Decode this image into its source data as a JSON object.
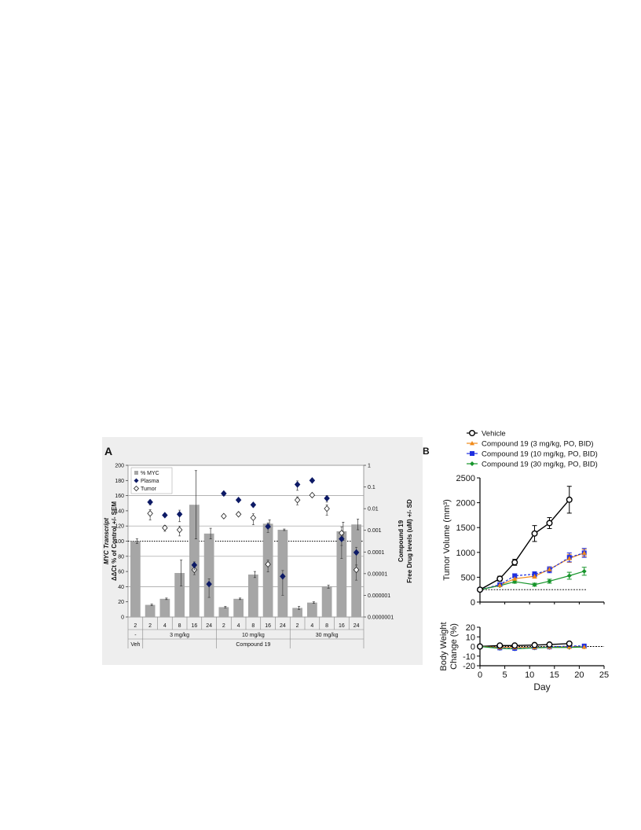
{
  "panel_a_letter": "A",
  "panel_b_letter": "B",
  "chart_data": [
    {
      "type": "bar",
      "title": "",
      "ylabel_lines": [
        "MYC Transcript",
        "ΔΔCt % of Control +/- SEM"
      ],
      "y2label_lines": [
        "Compound 19",
        "Free Drug levels (uM) +/- SD"
      ],
      "ylim": [
        0,
        200
      ],
      "y_ticks": [
        0,
        20,
        40,
        60,
        80,
        100,
        120,
        140,
        160,
        180,
        200
      ],
      "y2_scale": "log",
      "y2lim": [
        1e-07,
        1
      ],
      "y2_ticks": [
        "0.0000001",
        "0.000001",
        "0.00001",
        "0.0001",
        "0.001",
        "0.01",
        "0.1",
        "1"
      ],
      "categories": [
        "2",
        "2",
        "4",
        "8",
        "16",
        "24",
        "2",
        "4",
        "8",
        "16",
        "24",
        "2",
        "4",
        "8",
        "16",
        "24"
      ],
      "dose_groups": [
        "-",
        "3 mg/kg",
        "10 mg/kg",
        "30 mg/kg"
      ],
      "treatment_groups": [
        "Veh",
        "Compound 19"
      ],
      "reference_line_y": 100,
      "legend": {
        "position": "top-left",
        "entries": [
          "% MYC",
          "Plasma",
          "Tumor"
        ]
      },
      "series": [
        {
          "name": "% MYC",
          "kind": "bar",
          "values": [
            100,
            16,
            24,
            58,
            148,
            110,
            13,
            24,
            56,
            123,
            115,
            12,
            19,
            40,
            113,
            122
          ],
          "errors": [
            3,
            1,
            1,
            17,
            45,
            7,
            1,
            1,
            4,
            5,
            1,
            2,
            1,
            2,
            12,
            7
          ]
        },
        {
          "name": "Plasma",
          "kind": "scatter",
          "axis": "right-log",
          "values": [
            null,
            0.02,
            0.005,
            0.0055,
            2.5e-05,
            3.3e-06,
            0.05,
            0.025,
            0.015,
            0.0015,
            7.5e-06,
            0.13,
            0.2,
            0.03,
            0.0004,
            9.5e-05
          ],
          "errors": [
            null,
            0.005,
            0.0008,
            0.003,
            1e-05,
            2.5e-06,
            0.01,
            0.004,
            0.003,
            0.0007,
            6.5e-06,
            0.06,
            0.02,
            0.01,
            0.0002,
            7e-05
          ]
        },
        {
          "name": "Tumor",
          "kind": "scatter",
          "axis": "right-log",
          "values": [
            null,
            0.006,
            0.0013,
            0.00105,
            1.5e-05,
            null,
            0.0045,
            0.0055,
            0.0038,
            2.7e-05,
            null,
            0.025,
            0.042,
            0.01,
            0.00075,
            1.5e-05
          ],
          "errors": [
            null,
            0.003,
            0.0004,
            0.0005,
            6e-06,
            null,
            0.0008,
            0.001,
            0.002,
            1.5e-05,
            null,
            0.01,
            0.008,
            0.005,
            0.0007,
            1e-05
          ]
        }
      ]
    },
    {
      "type": "line",
      "title": "",
      "xlabel": "Day",
      "ylabel_lines": [
        "Tumor Volume (mm³)"
      ],
      "xlim": [
        0,
        25
      ],
      "x_ticks": [
        0,
        5,
        10,
        15,
        20,
        25
      ],
      "ylim": [
        0,
        2500
      ],
      "y_ticks": [
        0,
        500,
        1000,
        1500,
        2000,
        2500
      ],
      "reference_line_y": 250,
      "legend": {
        "position": "top",
        "entries": [
          "Vehicle",
          "Compound 19 (3 mg/kg, PO, BID)",
          "Compound 19 (10 mg/kg, PO, BID)",
          "Compound 19 (30 mg/kg, PO, BID)"
        ]
      },
      "series": [
        {
          "name": "Vehicle",
          "color": "#000000",
          "marker": "circle-open",
          "x": [
            0,
            4,
            7,
            11,
            14,
            18
          ],
          "values": [
            250,
            470,
            800,
            1380,
            1590,
            2060
          ],
          "errors": [
            20,
            50,
            60,
            160,
            110,
            270
          ]
        },
        {
          "name": "Compound 19 (3 mg/kg, PO, BID)",
          "color": "#f08a1a",
          "marker": "triangle",
          "x": [
            0,
            4,
            7,
            11,
            14,
            18,
            21
          ],
          "values": [
            250,
            340,
            470,
            520,
            660,
            880,
            990
          ],
          "errors": [
            15,
            20,
            30,
            40,
            50,
            80,
            70
          ]
        },
        {
          "name": "Compound 19 (10 mg/kg, PO, BID)",
          "color": "#1f2fe0",
          "marker": "square",
          "x": [
            0,
            4,
            7,
            11,
            14,
            18,
            21
          ],
          "values": [
            250,
            350,
            530,
            560,
            650,
            900,
            990
          ],
          "errors": [
            15,
            25,
            40,
            50,
            60,
            90,
            90
          ]
        },
        {
          "name": "Compound 19 (30 mg/kg, PO, BID)",
          "color": "#17952b",
          "marker": "diamond",
          "x": [
            0,
            4,
            7,
            11,
            14,
            18,
            21
          ],
          "values": [
            250,
            330,
            410,
            350,
            420,
            530,
            620
          ],
          "errors": [
            15,
            20,
            30,
            30,
            40,
            70,
            80
          ]
        }
      ]
    },
    {
      "type": "line",
      "title": "",
      "xlabel": "Day",
      "ylabel_lines": [
        "Body Weight",
        "Change (%)"
      ],
      "xlim": [
        0,
        25
      ],
      "x_ticks": [
        0,
        5,
        10,
        15,
        20,
        25
      ],
      "ylim": [
        -20,
        20
      ],
      "y_ticks": [
        -20,
        -10,
        0,
        10,
        20
      ],
      "reference_line_y": 0,
      "series": [
        {
          "name": "Vehicle",
          "color": "#000000",
          "marker": "circle-open",
          "x": [
            0,
            4,
            7,
            11,
            14,
            18
          ],
          "values": [
            0,
            1,
            1,
            1.5,
            2,
            3
          ],
          "errors": [
            0.5,
            1,
            1,
            1,
            1,
            1.5
          ]
        },
        {
          "name": "Compound 19 (3 mg/kg, PO, BID)",
          "color": "#f08a1a",
          "marker": "triangle",
          "x": [
            0,
            4,
            7,
            11,
            14,
            18,
            21
          ],
          "values": [
            0,
            -1,
            -1,
            -1,
            -0.5,
            -0.5,
            -0.5
          ],
          "errors": [
            0.5,
            0.5,
            0.5,
            0.5,
            0.5,
            0.5,
            0.5
          ]
        },
        {
          "name": "Compound 19 (10 mg/kg, PO, BID)",
          "color": "#1f2fe0",
          "marker": "square",
          "x": [
            0,
            4,
            7,
            11,
            14,
            18,
            21
          ],
          "values": [
            0,
            -1.5,
            -2,
            -1,
            -0.5,
            0.5,
            0.5
          ],
          "errors": [
            0.5,
            0.5,
            0.5,
            0.5,
            0.5,
            0.5,
            0.5
          ]
        },
        {
          "name": "Compound 19 (30 mg/kg, PO, BID)",
          "color": "#17952b",
          "marker": "diamond",
          "x": [
            0,
            4,
            7,
            11,
            14,
            18,
            21
          ],
          "values": [
            0,
            -2,
            -2.5,
            -1.5,
            -1,
            -1,
            -0.5
          ],
          "errors": [
            0.5,
            0.5,
            0.5,
            0.5,
            0.5,
            0.5,
            0.5
          ]
        }
      ]
    }
  ]
}
